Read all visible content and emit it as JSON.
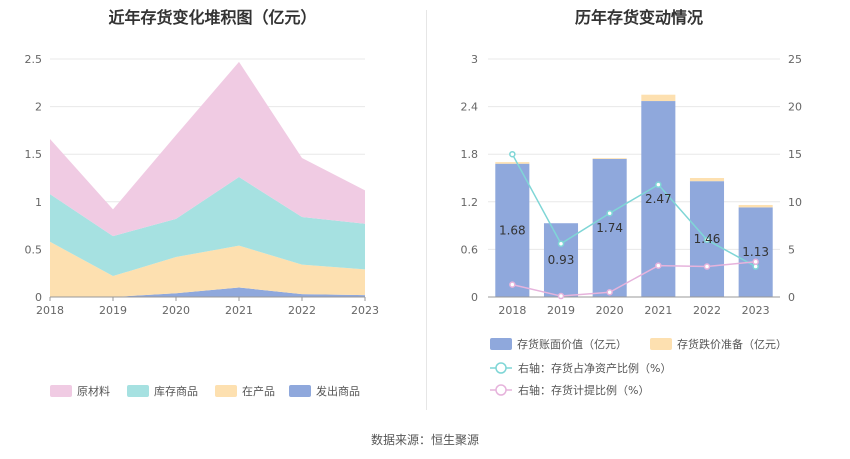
{
  "source_label": "数据来源：恒生聚源",
  "chart_data": [
    {
      "type": "area",
      "stacked": true,
      "title": "近年存货变化堆积图（亿元）",
      "categories": [
        "2018",
        "2019",
        "2020",
        "2021",
        "2022",
        "2023"
      ],
      "y_ticks": [
        "0",
        "0.5",
        "1",
        "1.5",
        "2",
        "2.5"
      ],
      "ylim": [
        0,
        2.5
      ],
      "series": [
        {
          "name": "发出商品",
          "color": "#8fa8dc",
          "values": [
            0.0,
            0.0,
            0.04,
            0.1,
            0.03,
            0.02
          ]
        },
        {
          "name": "在产品",
          "color": "#fde0b0",
          "values": [
            0.58,
            0.22,
            0.38,
            0.44,
            0.31,
            0.27
          ]
        },
        {
          "name": "库存商品",
          "color": "#a6e1e1",
          "values": [
            0.5,
            0.42,
            0.4,
            0.72,
            0.5,
            0.48
          ]
        },
        {
          "name": "原材料",
          "color": "#f0cbe3",
          "values": [
            0.58,
            0.28,
            0.88,
            1.21,
            0.62,
            0.35
          ]
        }
      ],
      "legend_position": "bottom",
      "grid": true
    },
    {
      "type": "bar",
      "title": "历年存货变动情况",
      "categories": [
        "2018",
        "2019",
        "2020",
        "2021",
        "2022",
        "2023"
      ],
      "y_left_ticks": [
        "0",
        "0.6",
        "1.2",
        "1.8",
        "2.4",
        "3"
      ],
      "y_right_ticks": [
        "0",
        "5",
        "10",
        "15",
        "20",
        "25"
      ],
      "ylim_left": [
        0,
        3
      ],
      "ylim_right": [
        0,
        25
      ],
      "bars": [
        {
          "name": "存货账面价值（亿元）",
          "color": "#8fa8dc",
          "values": [
            1.68,
            0.93,
            1.74,
            2.47,
            1.46,
            1.13
          ],
          "value_labels": [
            "1.68",
            "0.93",
            "1.74",
            "2.47",
            "1.46",
            "1.13"
          ]
        },
        {
          "name": "存货跌价准备（亿元）",
          "color": "#fde0b0",
          "values": [
            0.02,
            0.0,
            0.01,
            0.08,
            0.04,
            0.03
          ]
        }
      ],
      "lines": [
        {
          "name": "右轴：存货占净资产比例（%）",
          "color": "#7fd6d6",
          "axis": "right",
          "values": [
            15.0,
            5.6,
            8.8,
            11.8,
            6.0,
            3.2
          ]
        },
        {
          "name": "右轴：存货计提比例（%）",
          "color": "#e6b3dc",
          "axis": "right",
          "values": [
            1.3,
            0.1,
            0.5,
            3.3,
            3.2,
            3.7
          ]
        }
      ],
      "legend_position": "bottom",
      "grid": true
    }
  ]
}
